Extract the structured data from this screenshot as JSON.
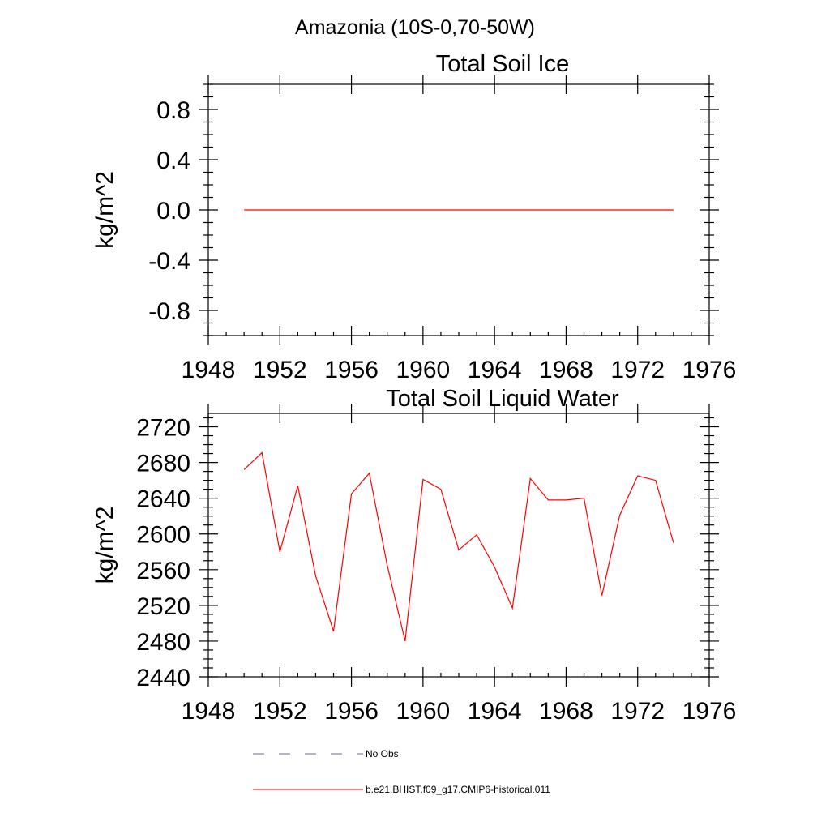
{
  "figure_title": "Amazonia (10S-0,70-50W)",
  "legend": [
    {
      "label": "No Obs",
      "color": "#6b6b8f",
      "style": "dashed"
    },
    {
      "label": "b.e21.BHIST.f09_g17.CMIP6-historical.011",
      "color": "#ff0000",
      "style": "solid"
    }
  ],
  "chart_data": [
    {
      "type": "line",
      "title": "Total Soil Ice",
      "xlabel": "",
      "ylabel": "kg/m^2",
      "xlim": [
        1948,
        1976
      ],
      "ylim": [
        -1.0,
        1.0
      ],
      "x_ticks": [
        1948,
        1952,
        1956,
        1960,
        1964,
        1968,
        1972,
        1976
      ],
      "x_tick_labels": [
        "1948",
        "1952",
        "1956",
        "1960",
        "1964",
        "1968",
        "1972",
        "1976"
      ],
      "y_ticks": [
        0.8,
        0.4,
        0.0,
        -0.4,
        -0.8
      ],
      "y_tick_labels": [
        "0.8",
        "0.4",
        "0.0",
        "-0.4",
        "-0.8"
      ],
      "grid": false,
      "series": [
        {
          "name": "b.e21.BHIST.f09_g17.CMIP6-historical.011",
          "color": "#ff0000",
          "x": [
            1950,
            1951,
            1952,
            1953,
            1954,
            1955,
            1956,
            1957,
            1958,
            1959,
            1960,
            1961,
            1962,
            1963,
            1964,
            1965,
            1966,
            1967,
            1968,
            1969,
            1970,
            1971,
            1972,
            1973,
            1974
          ],
          "values": [
            0,
            0,
            0,
            0,
            0,
            0,
            0,
            0,
            0,
            0,
            0,
            0,
            0,
            0,
            0,
            0,
            0,
            0,
            0,
            0,
            0,
            0,
            0,
            0,
            0
          ]
        }
      ]
    },
    {
      "type": "line",
      "title": "Total Soil Liquid Water",
      "xlabel": "",
      "ylabel": "kg/m^2",
      "xlim": [
        1948,
        1976
      ],
      "ylim": [
        2440,
        2735
      ],
      "x_ticks": [
        1948,
        1952,
        1956,
        1960,
        1964,
        1968,
        1972,
        1976
      ],
      "x_tick_labels": [
        "1948",
        "1952",
        "1956",
        "1960",
        "1964",
        "1968",
        "1972",
        "1976"
      ],
      "y_ticks": [
        2720,
        2680,
        2640,
        2600,
        2560,
        2520,
        2480,
        2440
      ],
      "y_tick_labels": [
        "2720",
        "2680",
        "2640",
        "2600",
        "2560",
        "2520",
        "2480",
        "2440"
      ],
      "grid": false,
      "series": [
        {
          "name": "b.e21.BHIST.f09_g17.CMIP6-historical.011",
          "color": "#ff0000",
          "x": [
            1950,
            1951,
            1952,
            1953,
            1954,
            1955,
            1956,
            1957,
            1958,
            1959,
            1960,
            1961,
            1962,
            1963,
            1964,
            1965,
            1966,
            1967,
            1968,
            1969,
            1970,
            1971,
            1972,
            1973,
            1974
          ],
          "values": [
            2672,
            2691,
            2580,
            2654,
            2553,
            2491,
            2645,
            2668,
            2565,
            2480,
            2661,
            2650,
            2582,
            2599,
            2563,
            2517,
            2662,
            2638,
            2638,
            2640,
            2531,
            2621,
            2665,
            2660,
            2590
          ]
        }
      ]
    }
  ]
}
